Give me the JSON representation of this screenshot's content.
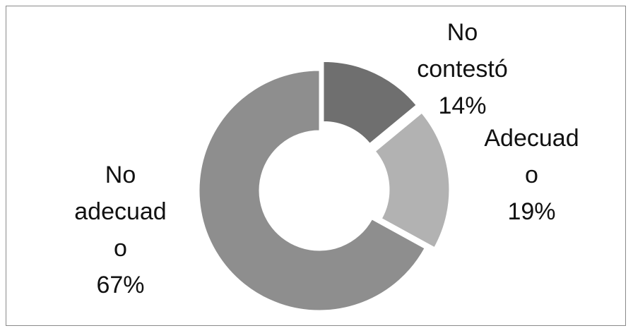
{
  "chart_data": {
    "type": "donut",
    "categories": [
      "No contestó",
      "Adecuado",
      "No adecuado"
    ],
    "values": [
      14,
      19,
      67
    ],
    "value_labels": [
      "14%",
      "19%",
      "67%"
    ],
    "colors": [
      "#6f6f6f",
      "#b2b2b2",
      "#8e8e8e"
    ]
  }
}
